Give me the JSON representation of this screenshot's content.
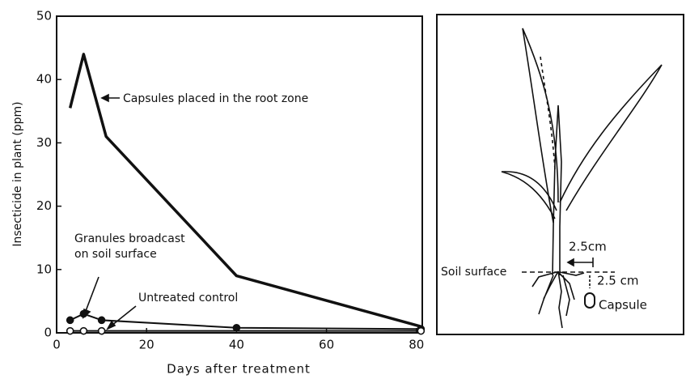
{
  "chart_data": {
    "type": "line",
    "x_label": "Days after treatment",
    "y_label": "Insecticide in plant (ppm)",
    "xlim": [
      0,
      81.3
    ],
    "xticks": [
      0,
      20,
      40,
      60,
      80
    ],
    "ylim": [
      0,
      50
    ],
    "yticks": [
      0,
      10,
      20,
      30,
      40,
      50
    ],
    "series": [
      {
        "name": "Capsules placed in the root zone",
        "color": "#111111",
        "marker": "none",
        "x": [
          3,
          6,
          11,
          40,
          81
        ],
        "values": [
          35.5,
          44,
          31,
          9,
          1
        ]
      },
      {
        "name": "Granules broadcast on soil surface",
        "color": "#111111",
        "marker": "filled",
        "x": [
          3,
          6,
          10,
          40,
          81
        ],
        "values": [
          2,
          3,
          2,
          0.8,
          0.6
        ]
      },
      {
        "name": "Untreated control",
        "color": "#111111",
        "marker": "open",
        "x": [
          3,
          6,
          10,
          81
        ],
        "values": [
          0.3,
          0.3,
          0.3,
          0.3
        ]
      }
    ]
  },
  "diagram": {
    "labels": {
      "top_depth": "2.5cm",
      "soil": "Soil surface",
      "side_depth": "2.5 cm",
      "capsule": "Capsule"
    }
  }
}
